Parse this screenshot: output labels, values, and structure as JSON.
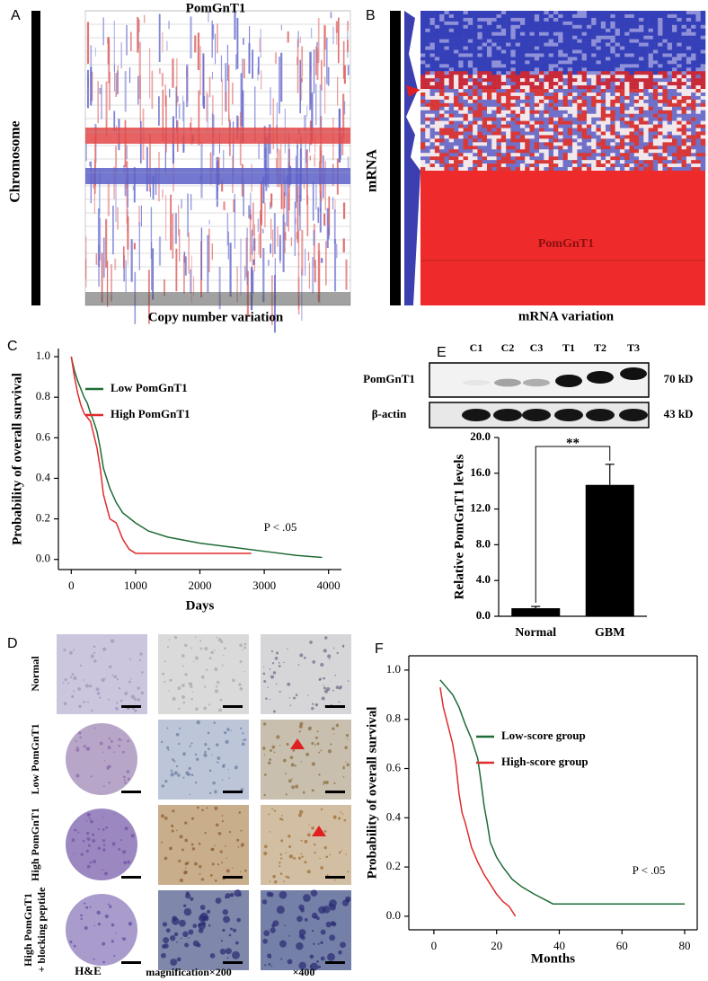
{
  "panel_labels": [
    "A",
    "B",
    "C",
    "D",
    "E",
    "F"
  ],
  "panel_a": {
    "title": "PomGnT1",
    "y_label": "Chromosome",
    "x_label": "Copy number variation"
  },
  "panel_b": {
    "y_label": "mRNA",
    "x_label": "mRNA variation",
    "annotation": "PomGnT1"
  },
  "panel_d": {
    "row_labels": [
      [
        "Normal"
      ],
      [
        "Low PomGnT1"
      ],
      [
        "High PomGnT1"
      ],
      [
        "High PomGnT1",
        "+ blocking peptide"
      ]
    ],
    "column_labels": [
      "H&E",
      "magnification×200",
      "×400"
    ]
  },
  "panel_e_blot": {
    "lanes": [
      "C1",
      "C2",
      "C3",
      "T1",
      "T2",
      "T3"
    ],
    "rows": [
      "PomGnT1",
      "β-actin"
    ],
    "sizes": [
      "70 kD",
      "43 kD"
    ]
  },
  "chart_data": [
    {
      "type": "line",
      "y_label": "Probability of overall survival",
      "x_label": "Days",
      "annotation": "P < .05",
      "xlim": [
        -200,
        4200
      ],
      "ylim": [
        -0.05,
        1.04
      ],
      "xticks": [
        0,
        1000,
        2000,
        3000,
        4000
      ],
      "yticks": [
        {
          "value": 0,
          "label": "0.0"
        },
        {
          "value": 0.2,
          "label": "0.2"
        },
        {
          "value": 0.4,
          "label": "0.4"
        },
        {
          "value": 0.6,
          "label": "0.6"
        },
        {
          "value": 0.8,
          "label": "0.8"
        },
        {
          "value": 1,
          "label": "1.0"
        }
      ],
      "series": [
        {
          "name": "Low PomGnT1",
          "color": "#1e6b35",
          "x": [
            0,
            20,
            50,
            100,
            150,
            200,
            250,
            300,
            350,
            400,
            450,
            500,
            600,
            700,
            800,
            1000,
            1200,
            1500,
            2000,
            2500,
            3000,
            3500,
            3900
          ],
          "values": [
            1.0,
            0.97,
            0.93,
            0.88,
            0.84,
            0.8,
            0.77,
            0.72,
            0.68,
            0.63,
            0.55,
            0.45,
            0.35,
            0.28,
            0.23,
            0.18,
            0.14,
            0.11,
            0.08,
            0.06,
            0.04,
            0.02,
            0.01
          ]
        },
        {
          "name": "High PomGnT1",
          "color": "#e02b2b",
          "x": [
            0,
            50,
            100,
            150,
            200,
            250,
            300,
            400,
            450,
            500,
            600,
            700,
            800,
            900,
            1000,
            2800
          ],
          "values": [
            1.0,
            0.9,
            0.82,
            0.76,
            0.72,
            0.7,
            0.68,
            0.55,
            0.45,
            0.32,
            0.2,
            0.18,
            0.1,
            0.05,
            0.03,
            0.03
          ]
        }
      ]
    },
    {
      "type": "bar",
      "y_label": "Relative PomGnT1 levels",
      "annotation": "**",
      "categories": [
        "Normal",
        "GBM"
      ],
      "values": [
        0.9,
        14.7
      ],
      "errors": [
        0.2,
        2.3
      ],
      "color": "#000000",
      "ylim": [
        0,
        20
      ],
      "yticks": [
        {
          "value": 0,
          "label": "0.0"
        },
        {
          "value": 4,
          "label": "4.0"
        },
        {
          "value": 8,
          "label": "8.0"
        },
        {
          "value": 12,
          "label": "12.0"
        },
        {
          "value": 16,
          "label": "16.0"
        },
        {
          "value": 20,
          "label": "20.0"
        }
      ]
    },
    {
      "type": "line",
      "y_label": "Probability of overall survival",
      "x_label": "Months",
      "annotation": "P < .05",
      "xlim": [
        -8,
        84
      ],
      "ylim": [
        -0.055,
        1.058
      ],
      "xticks": [
        0,
        20,
        40,
        60,
        80
      ],
      "yticks": [
        {
          "value": 0,
          "label": "0.0"
        },
        {
          "value": 0.2,
          "label": "0.2"
        },
        {
          "value": 0.4,
          "label": "0.4"
        },
        {
          "value": 0.6,
          "label": "0.6"
        },
        {
          "value": 0.8,
          "label": "0.8"
        },
        {
          "value": 1,
          "label": "1.0"
        }
      ],
      "series": [
        {
          "name": "Low-score group",
          "color": "#1e6b35",
          "x": [
            2,
            4,
            6,
            8,
            10,
            12,
            14,
            15,
            16,
            17,
            18,
            20,
            22,
            25,
            28,
            32,
            38,
            80
          ],
          "values": [
            0.96,
            0.93,
            0.9,
            0.85,
            0.78,
            0.72,
            0.64,
            0.55,
            0.45,
            0.38,
            0.3,
            0.24,
            0.2,
            0.15,
            0.12,
            0.09,
            0.05,
            0.05
          ]
        },
        {
          "name": "High-score group",
          "color": "#e02b2b",
          "x": [
            2,
            3,
            4,
            5,
            6,
            7,
            8,
            9,
            10,
            11,
            12,
            14,
            16,
            18,
            20,
            22,
            24,
            26
          ],
          "values": [
            0.93,
            0.85,
            0.8,
            0.75,
            0.7,
            0.62,
            0.5,
            0.42,
            0.38,
            0.33,
            0.28,
            0.22,
            0.17,
            0.13,
            0.09,
            0.06,
            0.04,
            0.0
          ]
        }
      ]
    }
  ]
}
